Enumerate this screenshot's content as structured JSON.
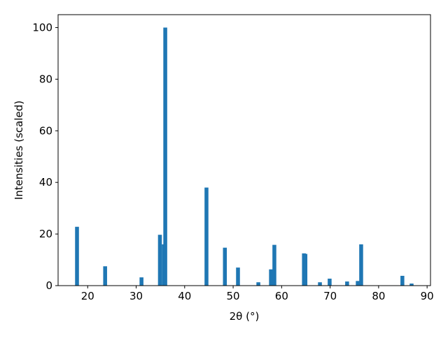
{
  "chart_data": {
    "type": "bar",
    "x_label": "2θ (°)",
    "y_label": "Intensities (scaled)",
    "x": [
      17.8,
      23.6,
      31.1,
      34.9,
      35.7,
      36.0,
      44.5,
      48.3,
      51.0,
      55.2,
      57.8,
      58.5,
      64.6,
      64.9,
      67.9,
      69.9,
      73.5,
      75.7,
      76.4,
      84.9,
      86.8
    ],
    "values": [
      22.8,
      7.5,
      3.2,
      19.7,
      16,
      100,
      38,
      14.7,
      7,
      1.3,
      6.3,
      15.8,
      12.5,
      12.3,
      1.3,
      2.7,
      1.6,
      1.8,
      16,
      3.8,
      0.8
    ],
    "color": "#1f77b4",
    "xlim": [
      13.9,
      90.7
    ],
    "xticks": [
      20,
      30,
      40,
      50,
      60,
      70,
      80,
      90
    ],
    "ylim": [
      0,
      105
    ],
    "yticks": [
      0,
      20,
      40,
      60,
      80,
      100
    ]
  }
}
